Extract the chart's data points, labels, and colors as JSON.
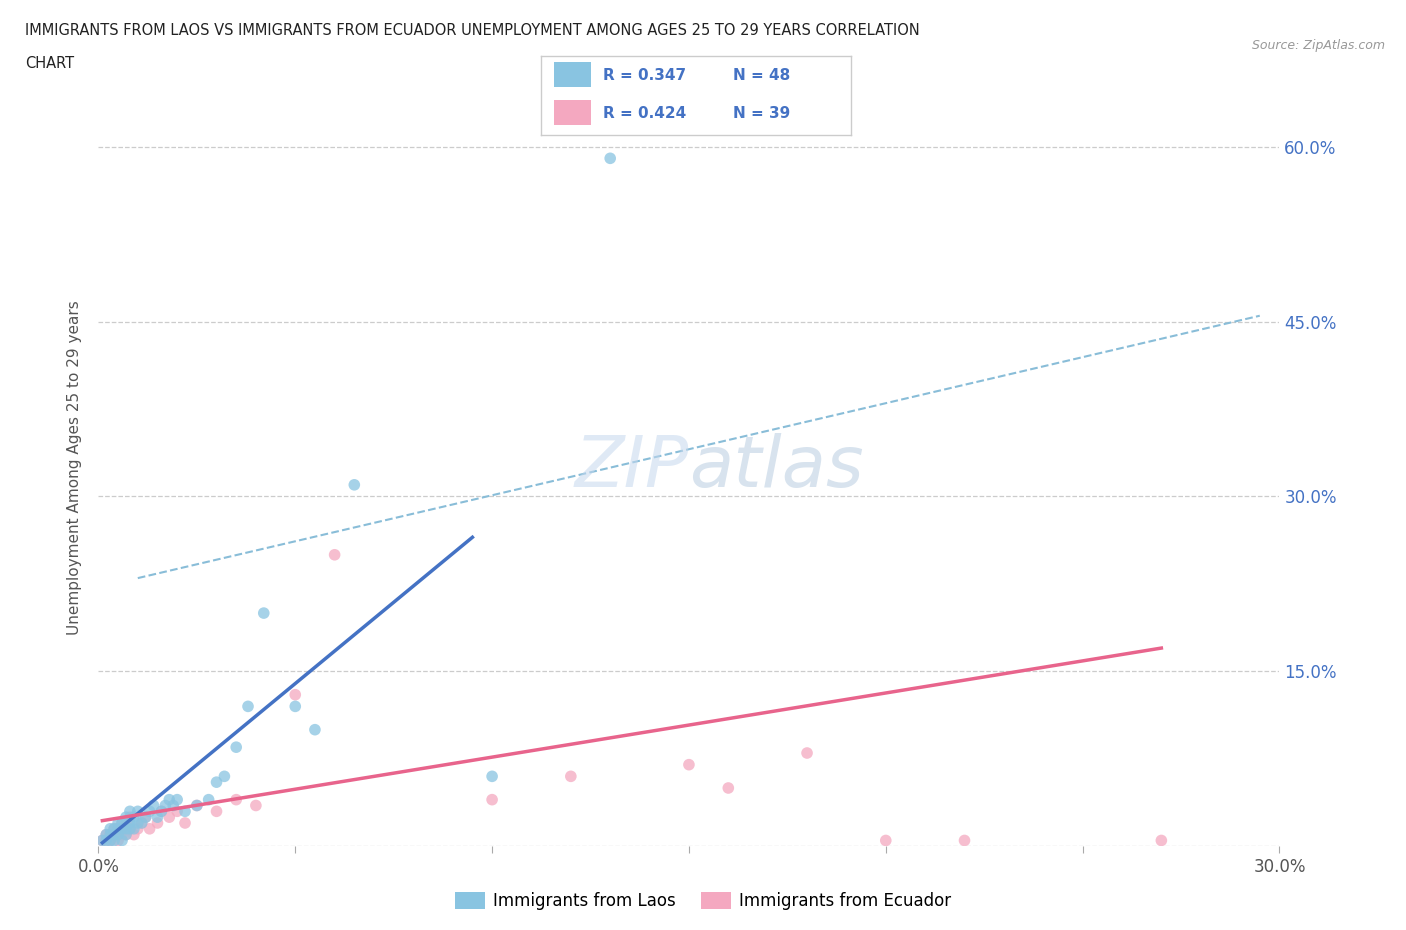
{
  "title_line1": "IMMIGRANTS FROM LAOS VS IMMIGRANTS FROM ECUADOR UNEMPLOYMENT AMONG AGES 25 TO 29 YEARS CORRELATION",
  "title_line2": "CHART",
  "source": "Source: ZipAtlas.com",
  "ylabel": "Unemployment Among Ages 25 to 29 years",
  "laos_R": 0.347,
  "laos_N": 48,
  "ecuador_R": 0.424,
  "ecuador_N": 39,
  "xlim": [
    0.0,
    0.3
  ],
  "ylim": [
    0.0,
    0.65
  ],
  "watermark": "ZIPatlas",
  "laos_color": "#89c4e1",
  "ecuador_color": "#f4a8c0",
  "laos_line_color": "#4472c4",
  "ecuador_line_color": "#e8648c",
  "dash_line_color": "#89bdd8",
  "background_color": "#ffffff",
  "legend_text_color": "#4472c4",
  "tick_label_color": "#4472c4",
  "laos_scatter_x": [
    0.001,
    0.002,
    0.002,
    0.003,
    0.003,
    0.003,
    0.004,
    0.004,
    0.004,
    0.005,
    0.005,
    0.005,
    0.006,
    0.006,
    0.006,
    0.007,
    0.007,
    0.007,
    0.008,
    0.008,
    0.008,
    0.009,
    0.009,
    0.01,
    0.01,
    0.011,
    0.012,
    0.013,
    0.014,
    0.015,
    0.016,
    0.017,
    0.018,
    0.019,
    0.02,
    0.022,
    0.025,
    0.028,
    0.03,
    0.032,
    0.035,
    0.038,
    0.042,
    0.05,
    0.055,
    0.065,
    0.1,
    0.13
  ],
  "laos_scatter_y": [
    0.005,
    0.005,
    0.01,
    0.005,
    0.01,
    0.015,
    0.005,
    0.01,
    0.015,
    0.01,
    0.015,
    0.02,
    0.005,
    0.015,
    0.02,
    0.01,
    0.015,
    0.025,
    0.015,
    0.02,
    0.03,
    0.015,
    0.025,
    0.02,
    0.03,
    0.02,
    0.025,
    0.03,
    0.035,
    0.025,
    0.03,
    0.035,
    0.04,
    0.035,
    0.04,
    0.03,
    0.035,
    0.04,
    0.055,
    0.06,
    0.085,
    0.12,
    0.2,
    0.12,
    0.1,
    0.31,
    0.06,
    0.59
  ],
  "ecuador_scatter_x": [
    0.001,
    0.002,
    0.002,
    0.003,
    0.003,
    0.004,
    0.004,
    0.005,
    0.005,
    0.006,
    0.006,
    0.007,
    0.007,
    0.008,
    0.008,
    0.009,
    0.01,
    0.011,
    0.012,
    0.013,
    0.015,
    0.016,
    0.018,
    0.02,
    0.022,
    0.025,
    0.03,
    0.035,
    0.04,
    0.05,
    0.06,
    0.1,
    0.12,
    0.15,
    0.16,
    0.18,
    0.2,
    0.22,
    0.27
  ],
  "ecuador_scatter_y": [
    0.005,
    0.005,
    0.01,
    0.005,
    0.01,
    0.01,
    0.015,
    0.005,
    0.015,
    0.01,
    0.02,
    0.01,
    0.02,
    0.015,
    0.025,
    0.01,
    0.015,
    0.02,
    0.025,
    0.015,
    0.02,
    0.03,
    0.025,
    0.03,
    0.02,
    0.035,
    0.03,
    0.04,
    0.035,
    0.13,
    0.25,
    0.04,
    0.06,
    0.07,
    0.05,
    0.08,
    0.005,
    0.005,
    0.005
  ],
  "laos_line_x": [
    0.001,
    0.095
  ],
  "laos_line_y": [
    0.003,
    0.265
  ],
  "ecuador_line_x": [
    0.001,
    0.27
  ],
  "ecuador_line_y": [
    0.022,
    0.17
  ],
  "dash_line_x": [
    0.01,
    0.295
  ],
  "dash_line_y": [
    0.23,
    0.455
  ]
}
